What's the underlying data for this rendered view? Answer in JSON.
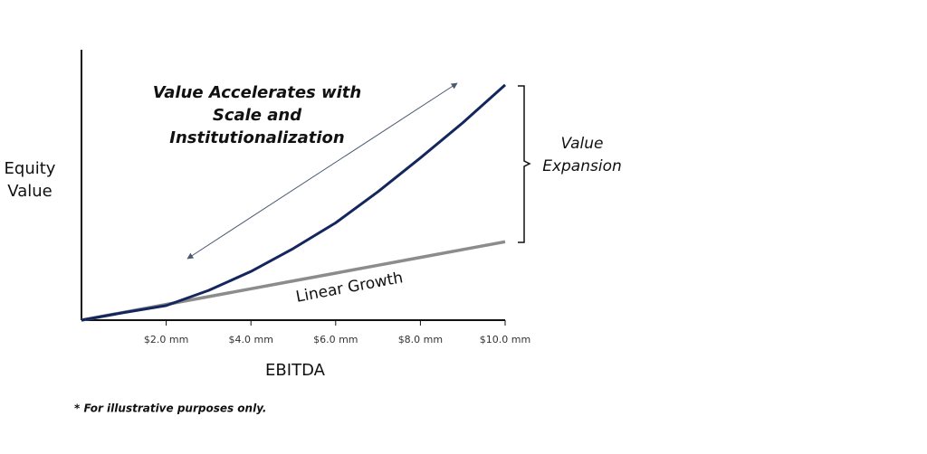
{
  "chart_data": {
    "type": "line",
    "x_label": "EBITDA",
    "y_label": [
      "Equity",
      "Value"
    ],
    "x": [
      0,
      1,
      2,
      3,
      4,
      5,
      6,
      7,
      8,
      9,
      10
    ],
    "series": [
      {
        "color": "#14265e",
        "values": [
          0,
          2.8,
          5.4,
          11,
          18,
          26.5,
          36,
          47.5,
          60,
          73,
          87
        ]
      },
      {
        "name": "Linear Growth",
        "color": "#8c8c8c",
        "values": [
          0,
          2.9,
          5.8,
          8.7,
          11.6,
          14.5,
          17.4,
          20.3,
          23.2,
          26.1,
          29
        ]
      }
    ],
    "xlim": [
      0,
      10
    ],
    "ylim": [
      0,
      100
    ],
    "xticks": [
      {
        "value": 2,
        "label": "$2.0 mm"
      },
      {
        "value": 4,
        "label": "$4.0 mm"
      },
      {
        "value": 6,
        "label": "$6.0 mm"
      },
      {
        "value": 8,
        "label": "$8.0 mm"
      },
      {
        "value": 10,
        "label": "$10.0 mm"
      }
    ],
    "annotations": {
      "headline": [
        "Value Accelerates with",
        "Scale and",
        "Institutionalization"
      ],
      "bracket": [
        "Value",
        "Expansion"
      ],
      "footnote": "* For illustrative purposes only."
    }
  }
}
